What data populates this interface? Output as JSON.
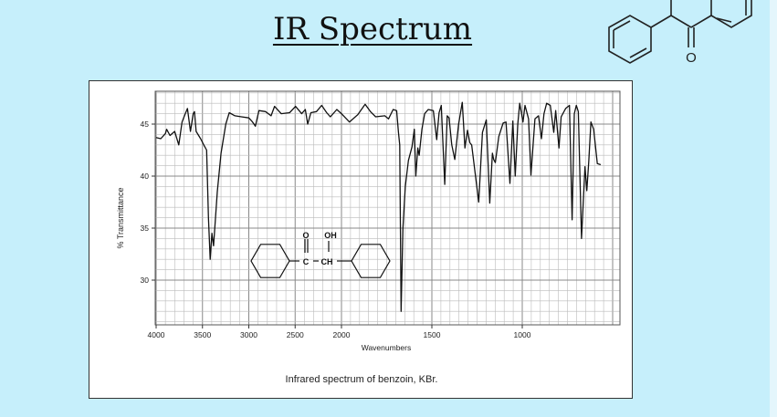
{
  "slide": {
    "title": "IR Spectrum"
  },
  "colors": {
    "background": "#c6effb",
    "panel": "#ffffff",
    "trace": "#111111",
    "grid": "#aaaaaa"
  },
  "chart_data": {
    "type": "line",
    "caption": "Infrared spectrum of benzoin, KBr.",
    "xlabel": "Wavenumbers",
    "ylabel": "% Transmittance",
    "x_ticks": [
      4000,
      3500,
      3000,
      2500,
      2000,
      1500,
      1000
    ],
    "y_ticks": [
      45,
      40,
      35,
      30
    ],
    "xlim": [
      4000,
      460
    ],
    "ylim": [
      25.7,
      48.2
    ],
    "x_scale_note": "scale doubles below 2000",
    "grid": true,
    "inset_structure_labels": [
      "O",
      "OH",
      "C",
      "CH"
    ],
    "series": [
      {
        "points": [
          [
            4000,
            43.7
          ],
          [
            3950,
            43.6
          ],
          [
            3900,
            44.1
          ],
          [
            3887,
            44.5
          ],
          [
            3850,
            43.9
          ],
          [
            3800,
            44.3
          ],
          [
            3756,
            43.0
          ],
          [
            3720,
            45.2
          ],
          [
            3690,
            45.9
          ],
          [
            3662,
            46.5
          ],
          [
            3630,
            44.3
          ],
          [
            3600,
            46.0
          ],
          [
            3586,
            46.2
          ],
          [
            3568,
            44.3
          ],
          [
            3520,
            43.6
          ],
          [
            3480,
            42.9
          ],
          [
            3455,
            42.5
          ],
          [
            3435,
            36.0
          ],
          [
            3417,
            32.0
          ],
          [
            3398,
            34.5
          ],
          [
            3380,
            33.3
          ],
          [
            3340,
            38.5
          ],
          [
            3300,
            42.2
          ],
          [
            3248,
            45.0
          ],
          [
            3211,
            46.1
          ],
          [
            3150,
            45.8
          ],
          [
            3080,
            45.7
          ],
          [
            3000,
            45.6
          ],
          [
            2960,
            45.2
          ],
          [
            2929,
            44.8
          ],
          [
            2891,
            46.3
          ],
          [
            2820,
            46.2
          ],
          [
            2760,
            45.8
          ],
          [
            2722,
            46.7
          ],
          [
            2650,
            46.0
          ],
          [
            2560,
            46.1
          ],
          [
            2496,
            46.7
          ],
          [
            2430,
            46.0
          ],
          [
            2390,
            46.4
          ],
          [
            2365,
            45.0
          ],
          [
            2330,
            46.1
          ],
          [
            2270,
            46.2
          ],
          [
            2214,
            46.8
          ],
          [
            2160,
            46.1
          ],
          [
            2120,
            45.7
          ],
          [
            2050,
            46.4
          ],
          [
            2000,
            46.0
          ],
          [
            1956,
            45.2
          ],
          [
            1910,
            45.9
          ],
          [
            1869,
            46.9
          ],
          [
            1840,
            46.2
          ],
          [
            1811,
            45.7
          ],
          [
            1760,
            45.8
          ],
          [
            1740,
            45.5
          ],
          [
            1714,
            46.4
          ],
          [
            1695,
            46.3
          ],
          [
            1685,
            44.2
          ],
          [
            1678,
            43.0
          ],
          [
            1670,
            27.0
          ],
          [
            1660,
            35.0
          ],
          [
            1647,
            39.0
          ],
          [
            1630,
            41.5
          ],
          [
            1610,
            42.8
          ],
          [
            1597,
            44.5
          ],
          [
            1589,
            40.0
          ],
          [
            1578,
            42.7
          ],
          [
            1570,
            42.0
          ],
          [
            1555,
            44.5
          ],
          [
            1540,
            46.0
          ],
          [
            1520,
            46.4
          ],
          [
            1492,
            46.3
          ],
          [
            1473,
            43.5
          ],
          [
            1460,
            46.1
          ],
          [
            1448,
            46.8
          ],
          [
            1429,
            39.2
          ],
          [
            1415,
            45.8
          ],
          [
            1405,
            45.6
          ],
          [
            1390,
            43.0
          ],
          [
            1373,
            41.6
          ],
          [
            1352,
            45.0
          ],
          [
            1332,
            47.1
          ],
          [
            1317,
            42.7
          ],
          [
            1303,
            44.4
          ],
          [
            1290,
            43.2
          ],
          [
            1280,
            43.0
          ],
          [
            1262,
            40.5
          ],
          [
            1241,
            37.5
          ],
          [
            1220,
            44.2
          ],
          [
            1199,
            45.4
          ],
          [
            1180,
            37.4
          ],
          [
            1165,
            42.2
          ],
          [
            1158,
            41.6
          ],
          [
            1149,
            41.3
          ],
          [
            1130,
            43.8
          ],
          [
            1106,
            45.1
          ],
          [
            1090,
            45.2
          ],
          [
            1068,
            39.3
          ],
          [
            1052,
            45.3
          ],
          [
            1039,
            40.0
          ],
          [
            1025,
            45.0
          ],
          [
            1014,
            47.0
          ],
          [
            996,
            45.2
          ],
          [
            985,
            46.8
          ],
          [
            965,
            45.5
          ],
          [
            952,
            40.1
          ],
          [
            930,
            45.5
          ],
          [
            910,
            45.8
          ],
          [
            894,
            43.6
          ],
          [
            880,
            46.0
          ],
          [
            865,
            47.0
          ],
          [
            845,
            46.8
          ],
          [
            826,
            44.2
          ],
          [
            815,
            46.3
          ],
          [
            797,
            42.7
          ],
          [
            785,
            45.7
          ],
          [
            760,
            46.5
          ],
          [
            739,
            46.8
          ],
          [
            724,
            35.8
          ],
          [
            712,
            46.0
          ],
          [
            701,
            46.8
          ],
          [
            690,
            46.2
          ],
          [
            672,
            34.0
          ],
          [
            653,
            40.9
          ],
          [
            643,
            38.6
          ],
          [
            632,
            41.5
          ],
          [
            620,
            45.2
          ],
          [
            605,
            44.5
          ],
          [
            585,
            41.2
          ],
          [
            566,
            41.1
          ]
        ]
      }
    ]
  }
}
